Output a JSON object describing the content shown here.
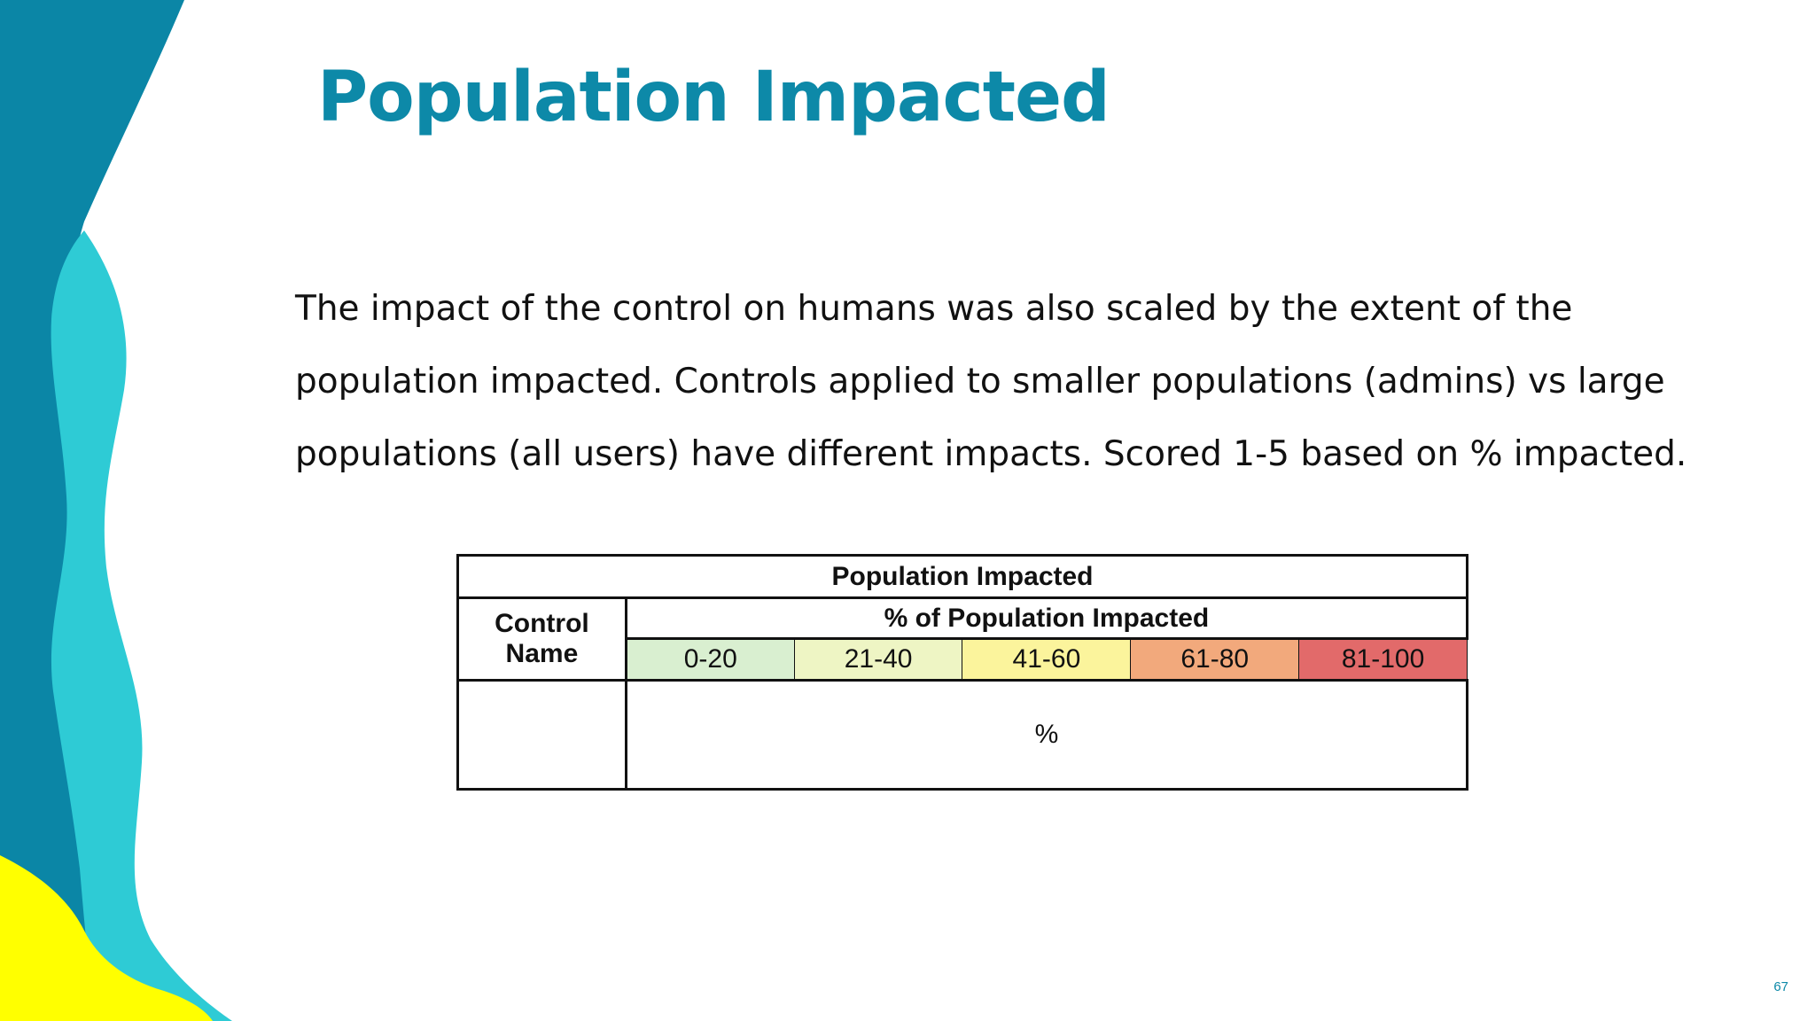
{
  "slide": {
    "title": "Population Impacted",
    "body": "The impact of the control on humans was also scaled by the extent of the population impacted. Controls applied to smaller populations (admins) vs large populations (all users) have different impacts. Scored 1-5 based on % impacted.",
    "page_number": "67"
  },
  "table": {
    "title": "Population Impacted",
    "control_header": "Control Name",
    "percent_header": "% of Population Impacted",
    "ranges": [
      {
        "label": "0-20",
        "color": "#d9efd0"
      },
      {
        "label": "21-40",
        "color": "#eef5c4"
      },
      {
        "label": "41-60",
        "color": "#fbf49c"
      },
      {
        "label": "61-80",
        "color": "#f2a97c"
      },
      {
        "label": "81-100",
        "color": "#e26a6a"
      }
    ],
    "row": {
      "control_name": "",
      "percent": "%"
    }
  },
  "colors": {
    "title": "#0d89a8",
    "deco_dark_teal": "#0b86a6",
    "deco_light_cyan": "#2ecbd5",
    "deco_yellow": "#ffff00"
  }
}
